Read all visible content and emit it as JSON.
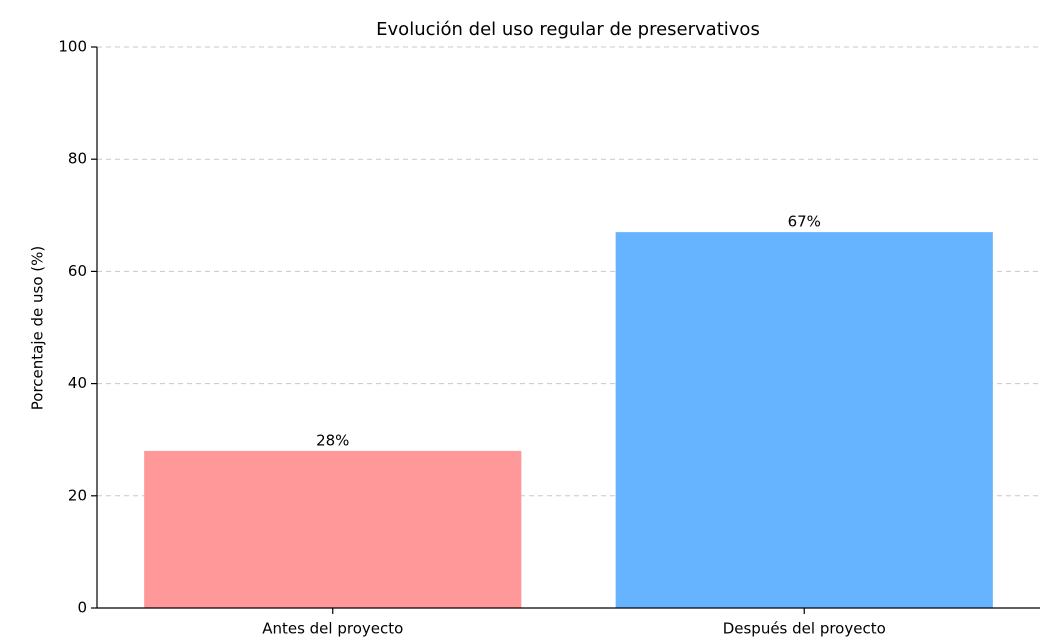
{
  "chart_data": {
    "type": "bar",
    "title": "Evolución del uso regular de preservativos",
    "ylabel": "Porcentaje de uso (%)",
    "categories": [
      "Antes del proyecto",
      "Después del proyecto"
    ],
    "values": [
      28,
      67
    ],
    "value_labels": [
      "28%",
      "67%"
    ],
    "colors": [
      "#ff9999",
      "#66b3ff"
    ],
    "ylim": [
      0,
      100
    ],
    "yticks": [
      0,
      20,
      40,
      60,
      80,
      100
    ],
    "grid": true
  }
}
